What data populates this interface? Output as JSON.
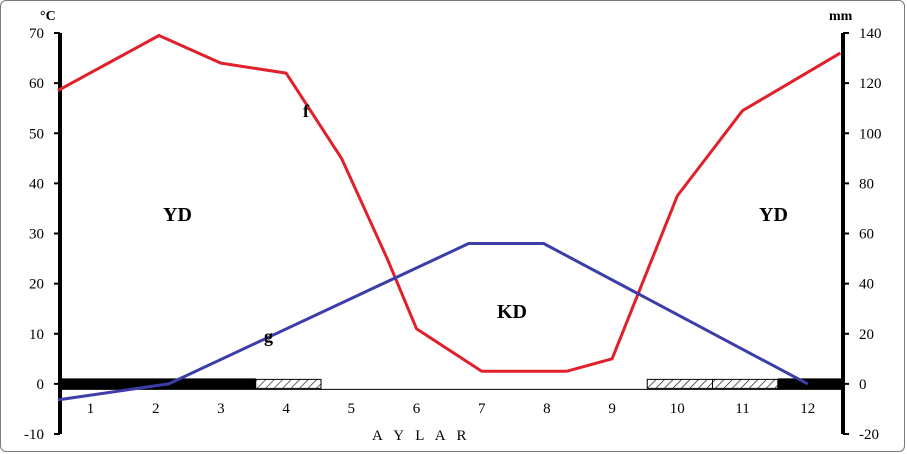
{
  "chart_data": {
    "type": "line",
    "units": {
      "left": "°C",
      "right": "mm"
    },
    "xlabel": "A Y L A R",
    "categories": [
      "1",
      "2",
      "3",
      "4",
      "5",
      "6",
      "7",
      "8",
      "9",
      "10",
      "11",
      "12"
    ],
    "left_axis": {
      "ylim": [
        -10,
        70
      ],
      "ticks": [
        -10,
        0,
        10,
        20,
        30,
        40,
        50,
        60,
        70
      ]
    },
    "right_axis": {
      "ylim": [
        -20,
        140
      ],
      "ticks": [
        -20,
        0,
        20,
        40,
        60,
        80,
        100,
        120,
        140
      ]
    },
    "series": [
      {
        "name": "f",
        "color": "#e0202a",
        "axis": "right",
        "x": [
          0.5,
          2.05,
          3.0,
          4.0,
          4.85,
          5.55,
          6.0,
          7.0,
          8.3,
          9.0,
          10.0,
          11.0,
          12.5
        ],
        "values": [
          117,
          139,
          128,
          124,
          90,
          50,
          22,
          5,
          5,
          10,
          75,
          109,
          132
        ]
      },
      {
        "name": "g",
        "color": "#3d3daa",
        "axis": "left",
        "x": [
          0.5,
          2.2,
          6.8,
          7.95,
          12.0
        ],
        "values": [
          -3.2,
          0,
          28,
          28,
          0
        ]
      }
    ],
    "curve_labels": [
      "f",
      "g"
    ],
    "regions": [
      "YD",
      "KD",
      "YD"
    ],
    "month_bar": [
      {
        "from": 0.5,
        "to": 3.5,
        "fill": "solid"
      },
      {
        "from": 3.5,
        "to": 4.5,
        "fill": "hatched"
      },
      {
        "from": 4.5,
        "to": 9.5,
        "fill": "none"
      },
      {
        "from": 9.5,
        "to": 10.5,
        "fill": "hatched"
      },
      {
        "from": 10.5,
        "to": 11.5,
        "fill": "hatched"
      },
      {
        "from": 11.5,
        "to": 12.5,
        "fill": "solid"
      }
    ]
  }
}
